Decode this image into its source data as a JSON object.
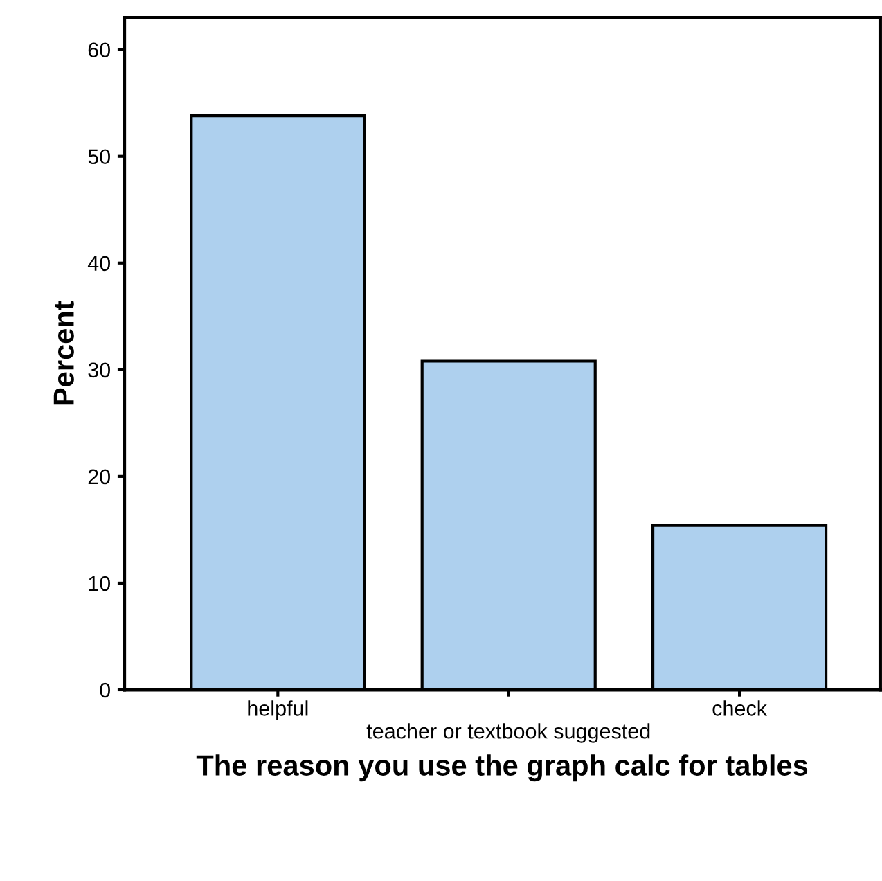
{
  "chart_data": {
    "type": "bar",
    "xlabel": "The reason you use the graph calc for tables",
    "ylabel": "Percent",
    "categories": [
      "helpful",
      "teacher or textbook suggested",
      "check"
    ],
    "values": [
      53.8,
      30.8,
      15.4
    ],
    "color": "#aed0ee",
    "ylim": [
      0,
      63
    ],
    "yticks": [
      0,
      10,
      20,
      30,
      40,
      50,
      60
    ],
    "grid": false,
    "legend": false
  }
}
